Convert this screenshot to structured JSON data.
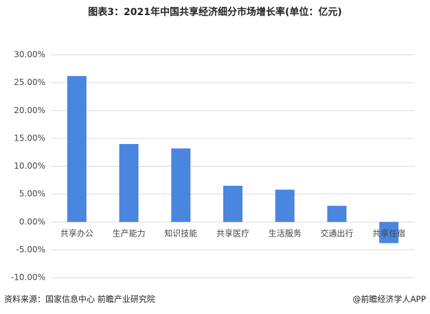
{
  "chart_data": {
    "type": "bar",
    "title": "图表3：2021年中国共享经济细分市场增长率(单位：亿元)",
    "categories": [
      "共享办公",
      "生产能力",
      "知识技能",
      "共享医疗",
      "生活服务",
      "交通出行",
      "共享住宿"
    ],
    "values": [
      26.2,
      14.0,
      13.2,
      6.5,
      5.8,
      2.9,
      -3.8
    ],
    "color": "#4a86e0",
    "ylim": [
      -10,
      30
    ],
    "yticks": [
      {
        "value": -10,
        "label": "-10.00%"
      },
      {
        "value": -5,
        "label": "-5.00%"
      },
      {
        "value": 0,
        "label": "0.00%"
      },
      {
        "value": 5,
        "label": "5.00%"
      },
      {
        "value": 10,
        "label": "10.00%"
      },
      {
        "value": 15,
        "label": "15.00%"
      },
      {
        "value": 20,
        "label": "20.00%"
      },
      {
        "value": 25,
        "label": "25.00%"
      },
      {
        "value": 30,
        "label": "30.00%"
      }
    ],
    "grid": true,
    "source": "资料来源：国家信息中心 前瞻产业研究院",
    "credit": "@前瞻经济学人APP"
  }
}
